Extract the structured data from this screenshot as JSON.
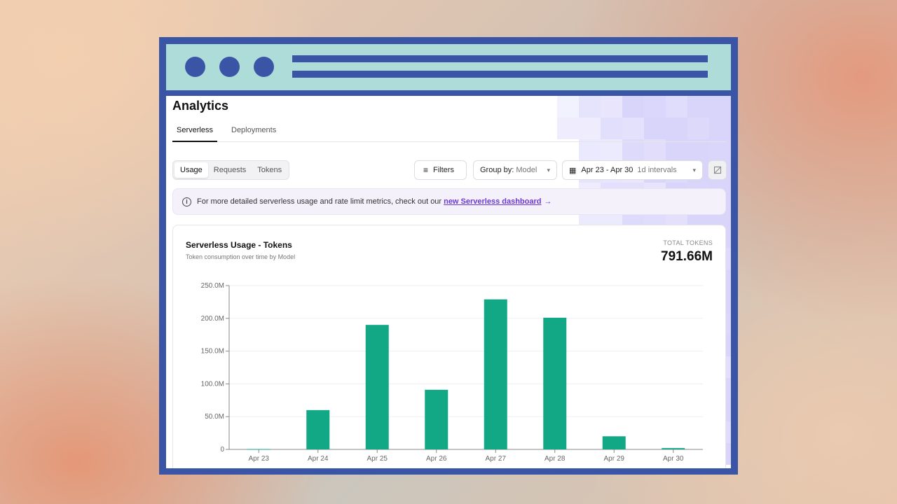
{
  "page": {
    "title": "Analytics"
  },
  "tabs": [
    {
      "label": "Serverless"
    },
    {
      "label": "Deployments"
    }
  ],
  "segment": {
    "items": [
      {
        "label": "Usage"
      },
      {
        "label": "Requests"
      },
      {
        "label": "Tokens"
      }
    ]
  },
  "toolbar": {
    "filters_label": "Filters",
    "group_label": "Group by:",
    "group_value": "Model",
    "date_range": "Apr 23 - Apr 30",
    "interval": "1d intervals"
  },
  "banner": {
    "text": "For more detailed serverless usage and rate limit metrics, check out our",
    "link_text": "new Serverless dashboard",
    "arrow": "→"
  },
  "card": {
    "title": "Serverless Usage - Tokens",
    "subtitle": "Token consumption over time by Model",
    "total_label": "TOTAL TOKENS",
    "total_value": "791.66M"
  },
  "colors": {
    "accent": "#3b55a6",
    "bar": "#12a886",
    "link": "#6b3ad6"
  },
  "chart_data": {
    "type": "bar",
    "categories": [
      "Apr 23",
      "Apr 24",
      "Apr 25",
      "Apr 26",
      "Apr 27",
      "Apr 28",
      "Apr 29",
      "Apr 30"
    ],
    "values": [
      0.5,
      60,
      190,
      91,
      229,
      201,
      20,
      2
    ],
    "ylim": [
      0,
      250
    ],
    "ytick_labels": [
      "0",
      "50.0M",
      "100.0M",
      "150.0M",
      "200.0M",
      "250.0M"
    ],
    "grid": true
  }
}
